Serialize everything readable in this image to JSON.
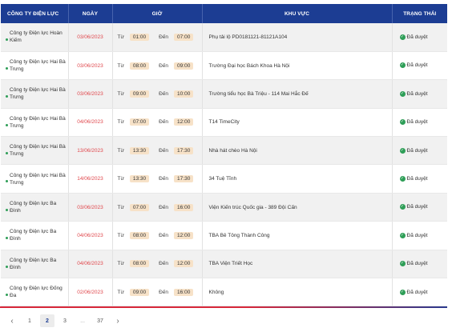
{
  "table": {
    "headers": {
      "unit": "CÔNG TY ĐIỆN LỰC",
      "date": "NGÀY",
      "time": "GIỜ",
      "area": "KHU VỰC",
      "status": "TRẠNG THÁI"
    },
    "from_label": "Từ",
    "to_label": "Đến",
    "rows": [
      {
        "unit": "Công ty Điện lực Hoàn Kiếm",
        "date": "03/06/2023",
        "start": "01:00",
        "end": "07:00",
        "area": "Phụ tải lộ PD0181121-81121A104",
        "status": "Đã duyệt"
      },
      {
        "unit": "Công ty Điện lực Hai Bà Trưng",
        "date": "03/06/2023",
        "start": "08:00",
        "end": "09:00",
        "area": "Trường Đại học Bách Khoa Hà Nội",
        "status": "Đã duyệt"
      },
      {
        "unit": "Công ty Điện lực Hai Bà Trưng",
        "date": "03/06/2023",
        "start": "09:00",
        "end": "10:00",
        "area": "Trường tiểu học Bà Triệu - 114 Mai Hắc Đế",
        "status": "Đã duyệt"
      },
      {
        "unit": "Công ty Điện lực Hai Bà Trưng",
        "date": "04/06/2023",
        "start": "07:00",
        "end": "12:00",
        "area": "T14 TimeCity",
        "status": "Đã duyệt"
      },
      {
        "unit": "Công ty Điện lực Hai Bà Trưng",
        "date": "13/06/2023",
        "start": "13:30",
        "end": "17:30",
        "area": "Nhà hát chèo Hà Nội",
        "status": "Đã duyệt"
      },
      {
        "unit": "Công ty Điện lực Hai Bà Trưng",
        "date": "14/06/2023",
        "start": "13:30",
        "end": "17:30",
        "area": "34 Tuệ Tĩnh",
        "status": "Đã duyệt"
      },
      {
        "unit": "Công ty Điện lực Ba Đình",
        "date": "03/06/2023",
        "start": "07:00",
        "end": "16:00",
        "area": "Viện Kiến trúc Quốc gia - 389 Đội Cấn",
        "status": "Đã duyệt"
      },
      {
        "unit": "Công ty Điện lực Ba Đình",
        "date": "04/06/2023",
        "start": "08:00",
        "end": "12:00",
        "area": "TBA Bê Tông Thành Công",
        "status": "Đã duyệt"
      },
      {
        "unit": "Công ty Điện lực Ba Đình",
        "date": "04/06/2023",
        "start": "08:00",
        "end": "12:00",
        "area": "TBA Viện Triết Học",
        "status": "Đã duyệt"
      },
      {
        "unit": "Công ty Điện lực Đống Đa",
        "date": "02/06/2023",
        "start": "09:00",
        "end": "16:00",
        "area": "Không",
        "status": "Đã duyệt"
      }
    ]
  },
  "pagination": {
    "prev": "‹",
    "pages": [
      "1",
      "2",
      "3"
    ],
    "ellipsis": "...",
    "last": "37",
    "next": "›",
    "current": "2"
  },
  "colors": {
    "header_bg": "#1c3d93",
    "date_text": "#e0474c",
    "time_pill": "#f7e2c8",
    "status_green": "#2e9e57"
  },
  "icons": {
    "status": "check-circle-icon",
    "unit_marker": "green-dot-icon"
  }
}
